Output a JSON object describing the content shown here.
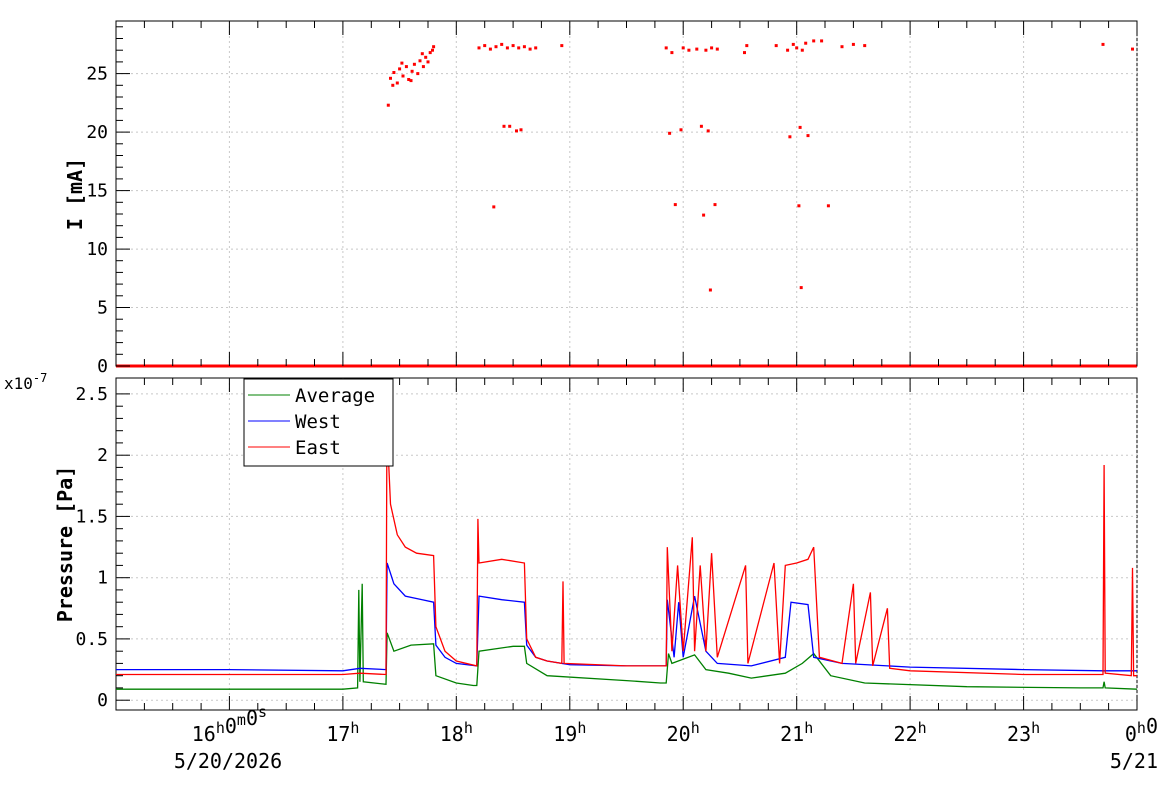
{
  "chart_data": [
    {
      "type": "scatter",
      "ylabel": "I [mA]",
      "ylim": [
        0,
        29.5
      ],
      "y_ticks": [
        "0",
        "5",
        "10",
        "15",
        "20",
        "25"
      ],
      "grid": true,
      "x_unit": "hours after 15:00",
      "x_tick_labels": [
        "16h0m0s",
        "17h",
        "18h",
        "19h",
        "20h",
        "21h",
        "22h",
        "23h",
        "0h0"
      ],
      "date_labels": [
        "5/20/2026",
        "5/21"
      ],
      "series": [
        {
          "color": "#ff0000",
          "points": [
            [
              2.4,
              22.3
            ],
            [
              2.42,
              24.6
            ],
            [
              2.45,
              25.1
            ],
            [
              2.48,
              24.2
            ],
            [
              2.5,
              25.4
            ],
            [
              2.53,
              24.8
            ],
            [
              2.56,
              25.6
            ],
            [
              2.58,
              24.5
            ],
            [
              2.61,
              25.2
            ],
            [
              2.63,
              25.8
            ],
            [
              2.66,
              25.0
            ],
            [
              2.68,
              26.1
            ],
            [
              2.71,
              25.6
            ],
            [
              2.73,
              26.4
            ],
            [
              2.75,
              26.0
            ],
            [
              2.77,
              26.8
            ],
            [
              2.79,
              27.0
            ],
            [
              2.8,
              27.3
            ],
            [
              2.44,
              24.0
            ],
            [
              2.52,
              25.9
            ],
            [
              2.6,
              24.4
            ],
            [
              2.7,
              26.7
            ],
            [
              3.2,
              27.2
            ],
            [
              3.25,
              27.4
            ],
            [
              3.3,
              27.1
            ],
            [
              3.35,
              27.3
            ],
            [
              3.4,
              27.5
            ],
            [
              3.45,
              27.2
            ],
            [
              3.5,
              27.4
            ],
            [
              3.55,
              27.2
            ],
            [
              3.6,
              27.3
            ],
            [
              3.65,
              27.1
            ],
            [
              3.7,
              27.2
            ],
            [
              3.42,
              20.5
            ],
            [
              3.47,
              20.5
            ],
            [
              3.53,
              20.1
            ],
            [
              3.57,
              20.2
            ],
            [
              3.33,
              13.6
            ],
            [
              3.93,
              27.4
            ],
            [
              4.85,
              27.2
            ],
            [
              4.9,
              26.8
            ],
            [
              4.88,
              19.9
            ],
            [
              4.93,
              13.8
            ],
            [
              4.98,
              20.2
            ],
            [
              5.0,
              27.2
            ],
            [
              5.05,
              27.0
            ],
            [
              5.12,
              27.1
            ],
            [
              5.16,
              20.5
            ],
            [
              5.18,
              12.9
            ],
            [
              5.2,
              27.0
            ],
            [
              5.22,
              20.1
            ],
            [
              5.24,
              6.5
            ],
            [
              5.25,
              27.2
            ],
            [
              5.28,
              13.8
            ],
            [
              5.3,
              27.1
            ],
            [
              5.54,
              26.8
            ],
            [
              5.56,
              27.4
            ],
            [
              5.82,
              27.4
            ],
            [
              5.92,
              27.0
            ],
            [
              5.97,
              27.5
            ],
            [
              6.0,
              27.2
            ],
            [
              5.94,
              19.6
            ],
            [
              6.02,
              13.7
            ],
            [
              6.03,
              20.4
            ],
            [
              6.04,
              6.7
            ],
            [
              6.05,
              27.0
            ],
            [
              6.08,
              27.6
            ],
            [
              6.1,
              19.7
            ],
            [
              6.15,
              27.8
            ],
            [
              6.22,
              27.8
            ],
            [
              6.28,
              13.7
            ],
            [
              6.4,
              27.3
            ],
            [
              6.5,
              27.5
            ],
            [
              6.6,
              27.4
            ],
            [
              8.7,
              27.5
            ],
            [
              8.96,
              27.1
            ]
          ]
        }
      ]
    },
    {
      "type": "line",
      "ylabel": "Pressure [Pa]",
      "y_multiplier": "x10^-7",
      "ylim": [
        -0.08,
        2.63
      ],
      "y_ticks": [
        "0",
        "0.5",
        "1",
        "1.5",
        "2",
        "2.5"
      ],
      "grid": true,
      "x_unit": "hours after 15:00",
      "legend_position": "top-left",
      "legend": [
        "Average",
        "West",
        "East"
      ],
      "series": [
        {
          "name": "Average",
          "color": "#008000",
          "points": [
            [
              0.0,
              0.09
            ],
            [
              1.0,
              0.09
            ],
            [
              2.0,
              0.09
            ],
            [
              2.13,
              0.1
            ],
            [
              2.14,
              0.9
            ],
            [
              2.15,
              0.15
            ],
            [
              2.17,
              0.95
            ],
            [
              2.18,
              0.15
            ],
            [
              2.38,
              0.13
            ],
            [
              2.39,
              0.55
            ],
            [
              2.45,
              0.4
            ],
            [
              2.6,
              0.45
            ],
            [
              2.8,
              0.46
            ],
            [
              2.82,
              0.2
            ],
            [
              3.0,
              0.14
            ],
            [
              3.15,
              0.12
            ],
            [
              3.18,
              0.12
            ],
            [
              3.2,
              0.4
            ],
            [
              3.5,
              0.44
            ],
            [
              3.6,
              0.44
            ],
            [
              3.62,
              0.3
            ],
            [
              3.8,
              0.2
            ],
            [
              4.5,
              0.16
            ],
            [
              4.8,
              0.14
            ],
            [
              4.85,
              0.14
            ],
            [
              4.87,
              0.38
            ],
            [
              4.9,
              0.3
            ],
            [
              5.1,
              0.37
            ],
            [
              5.2,
              0.25
            ],
            [
              5.4,
              0.22
            ],
            [
              5.6,
              0.18
            ],
            [
              5.9,
              0.22
            ],
            [
              6.05,
              0.3
            ],
            [
              6.15,
              0.38
            ],
            [
              6.3,
              0.2
            ],
            [
              6.6,
              0.14
            ],
            [
              7.5,
              0.11
            ],
            [
              8.5,
              0.1
            ],
            [
              8.7,
              0.1
            ],
            [
              8.71,
              0.15
            ],
            [
              8.72,
              0.1
            ],
            [
              9.0,
              0.09
            ]
          ]
        },
        {
          "name": "West",
          "color": "#0000ff",
          "points": [
            [
              0.0,
              0.25
            ],
            [
              1.0,
              0.25
            ],
            [
              2.0,
              0.24
            ],
            [
              2.15,
              0.26
            ],
            [
              2.38,
              0.25
            ],
            [
              2.39,
              1.12
            ],
            [
              2.45,
              0.95
            ],
            [
              2.55,
              0.85
            ],
            [
              2.7,
              0.82
            ],
            [
              2.8,
              0.8
            ],
            [
              2.82,
              0.45
            ],
            [
              2.9,
              0.35
            ],
            [
              3.0,
              0.3
            ],
            [
              3.18,
              0.28
            ],
            [
              3.2,
              0.85
            ],
            [
              3.4,
              0.82
            ],
            [
              3.6,
              0.8
            ],
            [
              3.62,
              0.45
            ],
            [
              3.7,
              0.35
            ],
            [
              3.8,
              0.32
            ],
            [
              4.0,
              0.29
            ],
            [
              4.5,
              0.28
            ],
            [
              4.85,
              0.28
            ],
            [
              4.86,
              0.82
            ],
            [
              4.92,
              0.35
            ],
            [
              4.96,
              0.8
            ],
            [
              5.0,
              0.35
            ],
            [
              5.1,
              0.85
            ],
            [
              5.2,
              0.4
            ],
            [
              5.3,
              0.3
            ],
            [
              5.6,
              0.28
            ],
            [
              5.9,
              0.35
            ],
            [
              5.95,
              0.8
            ],
            [
              6.1,
              0.78
            ],
            [
              6.15,
              0.35
            ],
            [
              6.4,
              0.3
            ],
            [
              7.0,
              0.27
            ],
            [
              8.0,
              0.25
            ],
            [
              8.7,
              0.24
            ],
            [
              9.0,
              0.24
            ]
          ]
        },
        {
          "name": "East",
          "color": "#ff0000",
          "points": [
            [
              0.0,
              0.21
            ],
            [
              1.0,
              0.21
            ],
            [
              2.0,
              0.21
            ],
            [
              2.15,
              0.22
            ],
            [
              2.38,
              0.21
            ],
            [
              2.39,
              2.6
            ],
            [
              2.4,
              2.0
            ],
            [
              2.42,
              1.6
            ],
            [
              2.48,
              1.35
            ],
            [
              2.55,
              1.25
            ],
            [
              2.65,
              1.2
            ],
            [
              2.8,
              1.18
            ],
            [
              2.82,
              0.6
            ],
            [
              2.9,
              0.4
            ],
            [
              3.0,
              0.32
            ],
            [
              3.18,
              0.28
            ],
            [
              3.19,
              1.48
            ],
            [
              3.2,
              1.12
            ],
            [
              3.4,
              1.15
            ],
            [
              3.6,
              1.12
            ],
            [
              3.62,
              0.5
            ],
            [
              3.7,
              0.35
            ],
            [
              3.8,
              0.32
            ],
            [
              3.93,
              0.3
            ],
            [
              3.94,
              0.97
            ],
            [
              3.95,
              0.3
            ],
            [
              4.5,
              0.28
            ],
            [
              4.85,
              0.28
            ],
            [
              4.86,
              1.25
            ],
            [
              4.9,
              0.4
            ],
            [
              4.95,
              1.1
            ],
            [
              5.0,
              0.4
            ],
            [
              5.08,
              1.33
            ],
            [
              5.1,
              0.4
            ],
            [
              5.15,
              1.1
            ],
            [
              5.2,
              0.4
            ],
            [
              5.25,
              1.2
            ],
            [
              5.3,
              0.35
            ],
            [
              5.55,
              1.1
            ],
            [
              5.57,
              0.3
            ],
            [
              5.8,
              1.12
            ],
            [
              5.85,
              0.3
            ],
            [
              5.9,
              1.1
            ],
            [
              6.0,
              1.12
            ],
            [
              6.1,
              1.15
            ],
            [
              6.15,
              1.25
            ],
            [
              6.2,
              0.35
            ],
            [
              6.4,
              0.3
            ],
            [
              6.5,
              0.95
            ],
            [
              6.52,
              0.3
            ],
            [
              6.65,
              0.88
            ],
            [
              6.67,
              0.28
            ],
            [
              6.8,
              0.75
            ],
            [
              6.82,
              0.26
            ],
            [
              7.0,
              0.24
            ],
            [
              8.0,
              0.21
            ],
            [
              8.7,
              0.21
            ],
            [
              8.71,
              1.92
            ],
            [
              8.72,
              0.22
            ],
            [
              8.95,
              0.2
            ],
            [
              8.96,
              1.08
            ],
            [
              8.97,
              0.2
            ],
            [
              9.0,
              0.2
            ]
          ]
        }
      ]
    }
  ],
  "colors": {
    "average": "#008000",
    "west": "#0000ff",
    "east": "#ff0000",
    "grid": "#c8c8c8",
    "frame": "#000000"
  }
}
